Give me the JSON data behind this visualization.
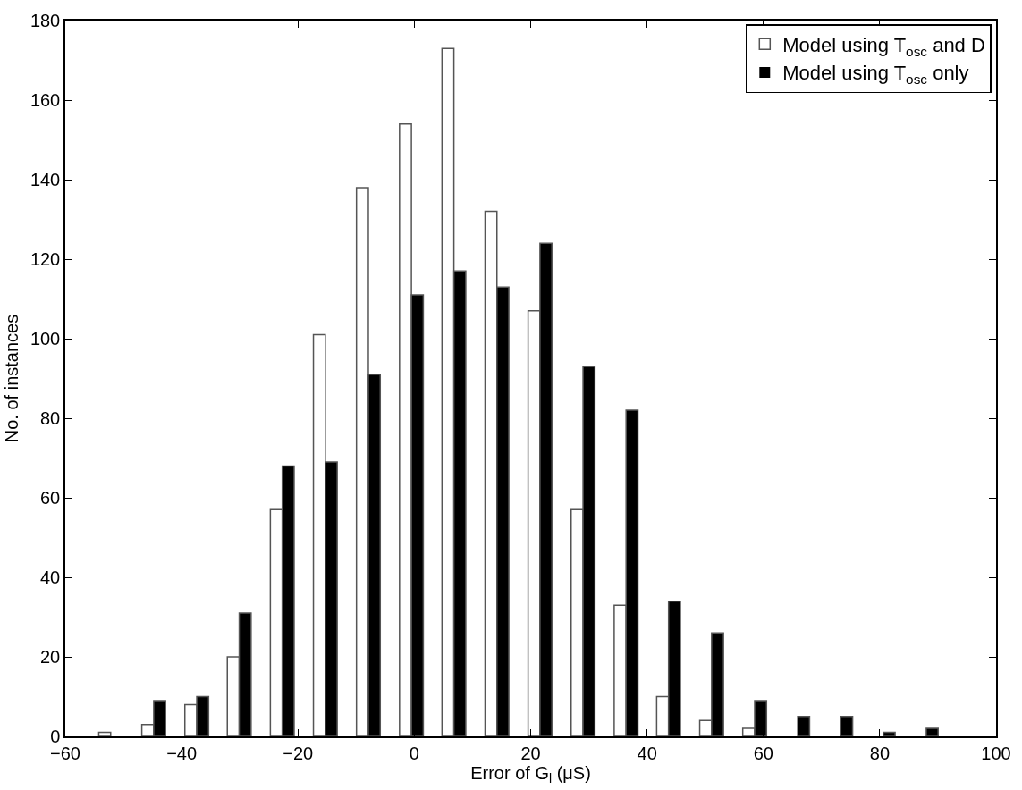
{
  "chart_data": {
    "type": "bar",
    "xlabel": "Error of G$_{l}$ (μS)",
    "ylabel": "No. of instances",
    "x": [
      -52.2,
      -44.8,
      -37.4,
      -30.1,
      -22.7,
      -15.3,
      -7.9,
      -0.5,
      6.8,
      14.2,
      21.6,
      29.0,
      36.4,
      43.7,
      51.1,
      58.5,
      65.9,
      73.3,
      80.6,
      88.0
    ],
    "series": [
      {
        "name": "Model using T$_{osc}$ and D",
        "color": "#ffffff",
        "values": [
          1,
          3,
          8,
          20,
          57,
          101,
          138,
          154,
          173,
          132,
          107,
          57,
          33,
          10,
          4,
          2,
          0,
          0,
          0,
          0
        ]
      },
      {
        "name": "Model using T$_{osc}$ only",
        "color": "#000000",
        "values": [
          0,
          9,
          10,
          31,
          68,
          69,
          91,
          111,
          117,
          113,
          124,
          93,
          82,
          34,
          26,
          9,
          5,
          5,
          1,
          2
        ]
      }
    ],
    "xlim": [
      -60,
      100
    ],
    "xticks": [
      -60,
      -40,
      -20,
      0,
      20,
      40,
      60,
      80,
      100
    ],
    "ylim": [
      0,
      180
    ],
    "yticks": [
      0,
      20,
      40,
      60,
      80,
      100,
      120,
      140,
      160,
      180
    ],
    "legend": "top right"
  }
}
